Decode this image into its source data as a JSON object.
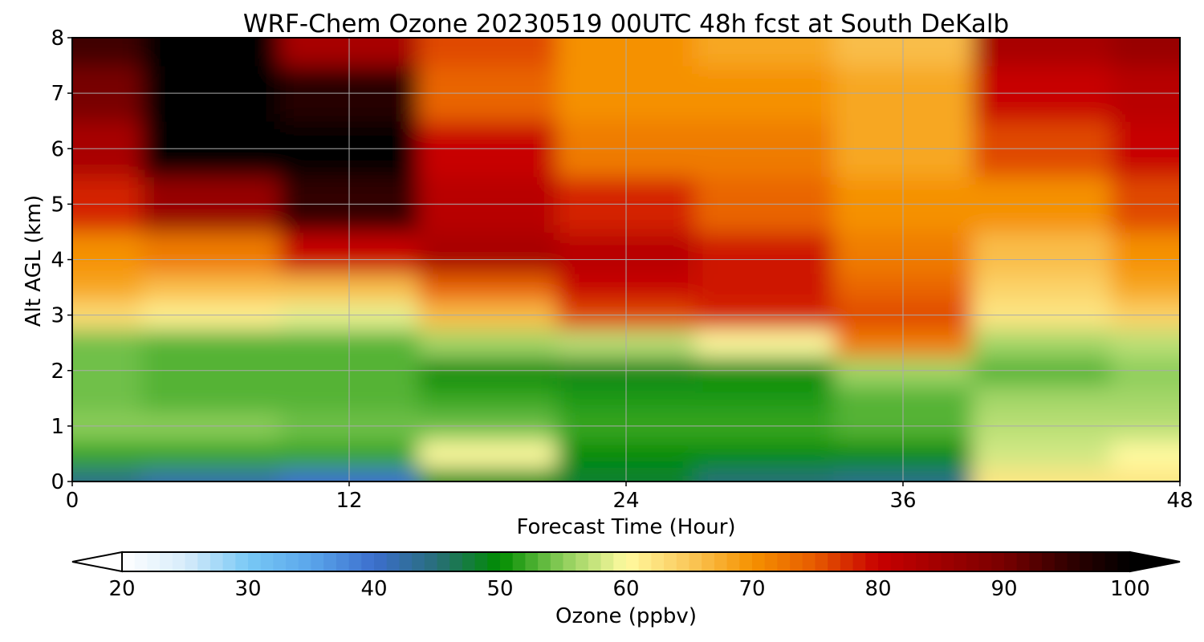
{
  "chart_data": {
    "type": "heatmap",
    "title": "WRF-Chem Ozone  20230519 00UTC 48h fcst at South DeKalb",
    "xlabel": "Forecast Time (Hour)",
    "ylabel": "Alt AGL (km)",
    "xlim": [
      0,
      48
    ],
    "ylim": [
      0,
      8
    ],
    "x_ticks": [
      0,
      12,
      24,
      36,
      48
    ],
    "y_ticks": [
      0,
      1,
      2,
      3,
      4,
      5,
      6,
      7,
      8
    ],
    "grid": true,
    "colorbar": {
      "label": "Ozone  (ppbv)",
      "range": [
        20,
        100
      ],
      "ticks": [
        20,
        30,
        40,
        50,
        60,
        70,
        80,
        90,
        100
      ],
      "extend": "both",
      "orientation": "horizontal",
      "placement": "bottom"
    },
    "x": [
      0,
      6,
      12,
      18,
      24,
      30,
      36,
      42,
      48
    ],
    "y": [
      0,
      0.5,
      1,
      1.5,
      2,
      2.5,
      3,
      3.5,
      4,
      5,
      6,
      7,
      8
    ],
    "z": [
      [
        44,
        42,
        40,
        50,
        48,
        45,
        44,
        62,
        62
      ],
      [
        52,
        52,
        52,
        60,
        50,
        50,
        50,
        58,
        60
      ],
      [
        55,
        55,
        54,
        54,
        52,
        52,
        53,
        57,
        57
      ],
      [
        54,
        53,
        53,
        52,
        51,
        51,
        53,
        56,
        56
      ],
      [
        54,
        53,
        53,
        50,
        49,
        50,
        56,
        53,
        55
      ],
      [
        54,
        53,
        53,
        56,
        57,
        60,
        72,
        56,
        57
      ],
      [
        63,
        61,
        59,
        66,
        76,
        78,
        76,
        62,
        64
      ],
      [
        68,
        66,
        66,
        74,
        80,
        79,
        74,
        64,
        68
      ],
      [
        70,
        72,
        80,
        84,
        82,
        79,
        72,
        66,
        70
      ],
      [
        78,
        86,
        95,
        82,
        78,
        74,
        70,
        70,
        76
      ],
      [
        84,
        100,
        100,
        80,
        72,
        72,
        68,
        76,
        80
      ],
      [
        90,
        100,
        96,
        74,
        70,
        70,
        68,
        80,
        82
      ],
      [
        94,
        100,
        84,
        76,
        70,
        68,
        66,
        84,
        86
      ]
    ]
  }
}
